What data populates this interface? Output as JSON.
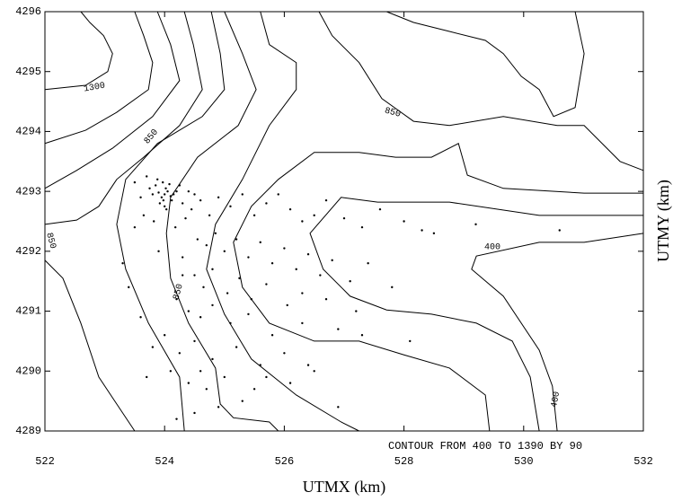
{
  "chart_data": {
    "type": "scatter",
    "xlabel": "UTMX (km)",
    "ylabel": "UTMY (km)",
    "annotation": "CONTOUR FROM 400 TO 1390 BY 90",
    "contour_labels": [
      "1300",
      "850",
      "850",
      "850",
      "850",
      "400",
      "400"
    ],
    "xlim": [
      522,
      532
    ],
    "xticks": [
      522,
      524,
      526,
      528,
      530,
      532
    ],
    "ylim": [
      4289,
      4296
    ],
    "yticks": [
      4289,
      4290,
      4291,
      4292,
      4293,
      4294,
      4295,
      4296
    ],
    "color": "#000000",
    "contours": [
      {
        "x": [
          522,
          522.68,
          523.05,
          523.13,
          522.98,
          522.75,
          522.6
        ],
        "y": [
          4294.7,
          4294.77,
          4295.0,
          4295.3,
          4295.6,
          4295.82,
          4296
        ]
      },
      {
        "x": [
          523.5,
          523.65,
          523.8,
          523.73,
          523.2,
          522.68,
          522
        ],
        "y": [
          4296,
          4295.6,
          4295.15,
          4294.7,
          4294.32,
          4294.02,
          4293.8
        ]
      },
      {
        "x": [
          523.88,
          524.1,
          524.25,
          523.8,
          523.13,
          522.53,
          522
        ],
        "y": [
          4296,
          4295.45,
          4294.85,
          4294.25,
          4293.72,
          4293.35,
          4293.05
        ]
      },
      {
        "x": [
          524.33,
          524.48,
          524.63,
          524.25,
          523.65,
          523.2,
          522.9,
          522.53,
          522
        ],
        "y": [
          4296,
          4295.45,
          4294.7,
          4294.1,
          4293.57,
          4293.2,
          4292.75,
          4292.52,
          4292.45
        ]
      },
      {
        "x": [
          524.78,
          524.93,
          525.0,
          524.63,
          523.88,
          523.35,
          523.2,
          523.35,
          523.73,
          524.25,
          524.33
        ],
        "y": [
          4296,
          4295.3,
          4294.7,
          4294.25,
          4293.8,
          4293.2,
          4292.45,
          4291.7,
          4290.8,
          4289.9,
          4289
        ]
      },
      {
        "x": [
          525.0,
          525.3,
          525.53,
          525.23,
          524.55,
          524.1,
          524.03,
          524.1,
          524.4,
          524.85,
          524.93,
          525.15,
          525.75,
          525.9
        ],
        "y": [
          4296,
          4295.3,
          4294.7,
          4294.1,
          4293.57,
          4292.9,
          4292.3,
          4291.55,
          4290.8,
          4290.05,
          4289.45,
          4289.22,
          4289.15,
          4289
        ]
      },
      {
        "x": [
          525.6,
          525.75,
          526.2,
          526.2,
          525.75,
          525.3,
          524.85,
          524.7,
          525.0,
          525.45,
          526.2,
          526.95,
          527.25
        ],
        "y": [
          4296,
          4295.45,
          4295.15,
          4294.7,
          4294.1,
          4293.2,
          4292.45,
          4291.7,
          4290.95,
          4290.2,
          4289.6,
          4289.15,
          4289
        ]
      },
      {
        "x": [
          526.58,
          526.8,
          527.25,
          527.63,
          528.16,
          528.76,
          529.66,
          530.56,
          531.01,
          531.31,
          531.61,
          532
        ],
        "y": [
          4296,
          4295.6,
          4295.15,
          4294.55,
          4294.17,
          4294.1,
          4294.25,
          4294.1,
          4294.1,
          4293.8,
          4293.5,
          4293.35
        ]
      },
      {
        "x": [
          527.71,
          528.16,
          528.76,
          529.36,
          529.66,
          529.96,
          530.26,
          530.5,
          530.86,
          531.01,
          530.86
        ],
        "y": [
          4296,
          4295.82,
          4295.67,
          4295.52,
          4295.3,
          4294.92,
          4294.7,
          4294.25,
          4294.4,
          4295.3,
          4296
        ]
      },
      {
        "x": [
          532,
          531.01,
          529.66,
          529.06,
          528.91,
          528.46,
          527.86,
          527.25,
          526.5,
          525.9,
          525.45,
          525.15,
          525.3,
          525.75,
          526.5,
          527.25,
          528.0,
          528.76,
          529.36,
          529.43
        ],
        "y": [
          4292.97,
          4292.97,
          4293.05,
          4293.27,
          4293.8,
          4293.57,
          4293.57,
          4293.65,
          4293.65,
          4293.2,
          4292.75,
          4292.15,
          4291.4,
          4290.8,
          4290.5,
          4290.5,
          4290.27,
          4290.05,
          4289.6,
          4289
        ]
      },
      {
        "x": [
          532,
          530.26,
          528.76,
          527.56,
          526.95,
          526.43,
          526.65,
          527.1,
          527.71,
          528.46,
          529.21,
          529.81,
          530.11,
          530.26
        ],
        "y": [
          4292.6,
          4292.6,
          4292.82,
          4292.82,
          4292.9,
          4292.3,
          4291.7,
          4291.25,
          4291.02,
          4290.95,
          4290.8,
          4290.5,
          4289.9,
          4289
        ]
      },
      {
        "x": [
          532,
          531.01,
          530.26,
          529.21,
          529.13,
          529.66,
          530.26,
          530.48,
          530.56
        ],
        "y": [
          4292.3,
          4292.15,
          4292.15,
          4291.92,
          4291.7,
          4291.25,
          4290.35,
          4289.75,
          4289
        ]
      },
      {
        "x": [
          522,
          522.3,
          522.6,
          522.9,
          523.2,
          523.5
        ],
        "y": [
          4291.85,
          4291.55,
          4290.8,
          4289.9,
          4289.45,
          4289
        ]
      }
    ],
    "x": [
      524.0,
      523.95,
      524.05,
      523.9,
      524.1,
      524.02,
      523.98,
      523.85,
      524.15,
      523.92,
      524.08,
      524.0,
      523.8,
      524.2,
      523.88,
      524.12,
      523.97,
      524.03,
      523.75,
      524.25,
      523.7,
      524.3,
      523.6,
      524.4,
      523.5,
      524.5,
      523.65,
      524.35,
      523.82,
      524.18,
      524.45,
      524.6,
      524.75,
      524.9,
      525.1,
      525.3,
      525.5,
      525.7,
      525.9,
      526.1,
      526.3,
      526.5,
      526.7,
      527.0,
      527.3,
      527.6,
      528.0,
      528.3,
      528.5,
      529.2,
      530.6,
      524.55,
      524.7,
      524.85,
      525.0,
      525.2,
      525.4,
      525.6,
      525.8,
      526.0,
      526.2,
      526.4,
      526.6,
      526.8,
      527.1,
      527.4,
      527.8,
      524.3,
      524.5,
      524.65,
      524.8,
      525.05,
      525.25,
      525.45,
      525.7,
      526.05,
      526.3,
      526.7,
      527.2,
      524.2,
      524.4,
      524.6,
      524.8,
      525.1,
      525.4,
      525.8,
      526.3,
      526.9,
      523.3,
      523.4,
      523.6,
      523.8,
      524.0,
      524.25,
      524.5,
      524.8,
      525.2,
      525.6,
      526.0,
      526.5,
      527.3,
      528.1,
      523.7,
      524.1,
      524.4,
      524.7,
      525.0,
      525.5,
      526.1,
      523.5,
      523.9,
      524.3,
      524.6,
      525.3,
      526.4,
      524.9,
      524.5,
      524.2,
      525.7,
      526.9
    ],
    "y": [
      4292.95,
      4292.9,
      4293.0,
      4292.98,
      4292.92,
      4293.05,
      4292.85,
      4293.1,
      4292.95,
      4292.8,
      4293.12,
      4292.75,
      4292.95,
      4293.0,
      4293.2,
      4292.85,
      4293.15,
      4292.7,
      4293.05,
      4293.1,
      4293.25,
      4292.8,
      4292.9,
      4293.0,
      4293.15,
      4292.95,
      4292.6,
      4292.55,
      4292.5,
      4292.4,
      4292.7,
      4292.85,
      4292.6,
      4292.9,
      4292.75,
      4292.95,
      4292.6,
      4292.8,
      4292.95,
      4292.7,
      4292.5,
      4292.6,
      4292.85,
      4292.55,
      4292.4,
      4292.7,
      4292.5,
      4292.35,
      4292.3,
      4292.45,
      4292.35,
      4292.2,
      4292.1,
      4292.3,
      4292.0,
      4292.2,
      4291.9,
      4292.15,
      4291.8,
      4292.05,
      4291.7,
      4291.95,
      4291.6,
      4291.85,
      4291.5,
      4291.8,
      4291.4,
      4291.9,
      4291.6,
      4291.4,
      4291.7,
      4291.3,
      4291.55,
      4291.2,
      4291.45,
      4291.1,
      4291.3,
      4291.2,
      4291.0,
      4291.2,
      4291.0,
      4290.9,
      4291.1,
      4290.8,
      4290.95,
      4290.6,
      4290.8,
      4290.7,
      4291.8,
      4291.4,
      4290.9,
      4290.4,
      4290.6,
      4290.3,
      4290.5,
      4290.2,
      4290.4,
      4290.1,
      4290.3,
      4290.0,
      4290.6,
      4290.5,
      4289.9,
      4290.0,
      4289.8,
      4289.7,
      4289.9,
      4289.7,
      4289.8,
      4292.4,
      4292.0,
      4291.6,
      4290.0,
      4289.5,
      4290.1,
      4289.4,
      4289.3,
      4289.2,
      4289.9,
      4289.4
    ]
  }
}
